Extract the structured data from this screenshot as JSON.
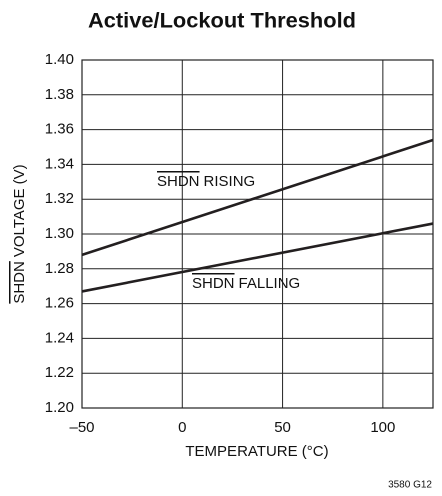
{
  "chart_data": {
    "type": "line",
    "title": "Active/Lockout Threshold",
    "xlabel": "TEMPERATURE (°C)",
    "ylabel": {
      "overline": "SHDN",
      "text": "VOLTAGE (V)"
    },
    "x": [
      -50,
      125
    ],
    "series": [
      {
        "name": {
          "overline": "SHDN",
          "text": "RISING"
        },
        "color": "#231f20",
        "values": [
          1.288,
          1.354
        ]
      },
      {
        "name": {
          "overline": "SHDN",
          "text": "FALLING"
        },
        "color": "#231f20",
        "values": [
          1.267,
          1.306
        ]
      }
    ],
    "xlim": [
      -50,
      125
    ],
    "xticks": [
      {
        "value": -50,
        "label": "–50"
      },
      0,
      50,
      100
    ],
    "ylim": [
      1.2,
      1.4
    ],
    "yticks": [
      {
        "value": 1.2,
        "label": "1.20"
      },
      {
        "value": 1.22,
        "label": "1.22"
      },
      {
        "value": 1.24,
        "label": "1.24"
      },
      {
        "value": 1.26,
        "label": "1.26"
      },
      {
        "value": 1.28,
        "label": "1.28"
      },
      {
        "value": 1.3,
        "label": "1.30"
      },
      {
        "value": 1.32,
        "label": "1.32"
      },
      {
        "value": 1.34,
        "label": "1.34"
      },
      {
        "value": 1.36,
        "label": "1.36"
      },
      {
        "value": 1.38,
        "label": "1.38"
      },
      {
        "value": 1.4,
        "label": "1.40"
      }
    ],
    "grid": true,
    "footnote": "3580 G12"
  }
}
